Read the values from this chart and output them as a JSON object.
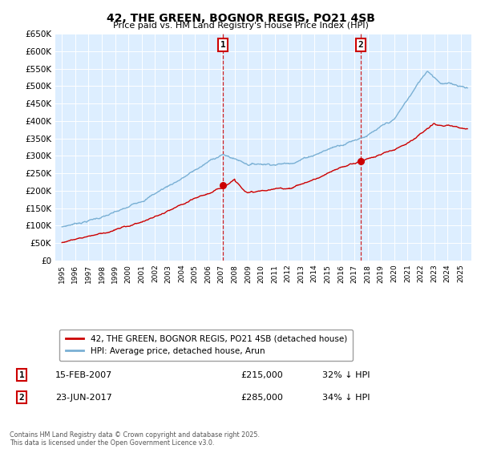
{
  "title": "42, THE GREEN, BOGNOR REGIS, PO21 4SB",
  "subtitle": "Price paid vs. HM Land Registry's House Price Index (HPI)",
  "background_color": "#ffffff",
  "plot_bg_color": "#ddeeff",
  "grid_color": "#ffffff",
  "red_line_color": "#cc0000",
  "blue_line_color": "#7ab0d4",
  "marker1_x": 2007.12,
  "marker2_x": 2017.47,
  "marker1_price_y": 215000,
  "marker2_price_y": 285000,
  "marker1_label": "1",
  "marker2_label": "2",
  "marker1_date": "15-FEB-2007",
  "marker1_price": "£215,000",
  "marker1_hpi": "32% ↓ HPI",
  "marker2_date": "23-JUN-2017",
  "marker2_price": "£285,000",
  "marker2_hpi": "34% ↓ HPI",
  "legend_line1": "42, THE GREEN, BOGNOR REGIS, PO21 4SB (detached house)",
  "legend_line2": "HPI: Average price, detached house, Arun",
  "footer": "Contains HM Land Registry data © Crown copyright and database right 2025.\nThis data is licensed under the Open Government Licence v3.0.",
  "ylim_min": 0,
  "ylim_max": 650000,
  "xmin": 1994.5,
  "xmax": 2025.8
}
